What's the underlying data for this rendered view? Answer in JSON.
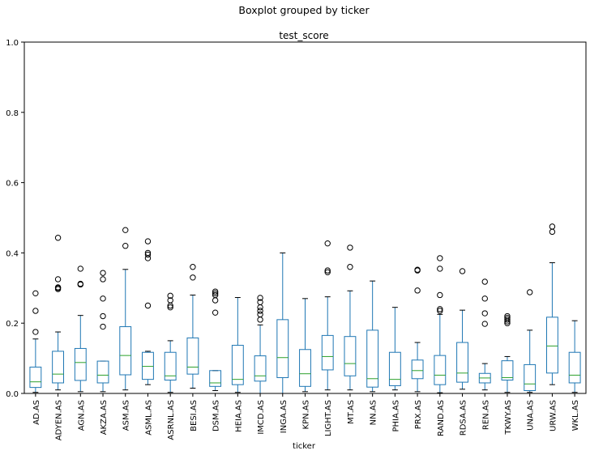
{
  "chart_data": {
    "type": "box",
    "suptitle": "Boxplot grouped by ticker",
    "title": "test_score",
    "xlabel": "ticker",
    "ylabel": "",
    "ylim": [
      0,
      1.0
    ],
    "yticks": [
      "0.0",
      "0.2",
      "0.4",
      "0.6",
      "0.8",
      "1.0"
    ],
    "colors": {
      "box": "#1f77b4",
      "median": "#2ca02c",
      "whisker": "#1f77b4",
      "flier": "#000000"
    },
    "categories": [
      "AD.AS",
      "ADYEN.AS",
      "AGN.AS",
      "AKZA.AS",
      "ASM.AS",
      "ASML.AS",
      "ASRNL.AS",
      "BESI.AS",
      "DSM.AS",
      "HEIA.AS",
      "IMCD.AS",
      "INGA.AS",
      "KPN.AS",
      "LIGHT.AS",
      "MT.AS",
      "NN.AS",
      "PHIA.AS",
      "PRX.AS",
      "RAND.AS",
      "RDSA.AS",
      "REN.AS",
      "TKWY.AS",
      "UNA.AS",
      "URW.AS",
      "WKL.AS"
    ],
    "boxes": [
      {
        "whislo": 0.003,
        "q1": 0.017,
        "med": 0.033,
        "q3": 0.075,
        "whishi": 0.155,
        "fliers": [
          0.175,
          0.235,
          0.285
        ]
      },
      {
        "whislo": 0.01,
        "q1": 0.03,
        "med": 0.055,
        "q3": 0.12,
        "whishi": 0.175,
        "fliers": [
          0.297,
          0.3,
          0.302,
          0.325,
          0.443
        ]
      },
      {
        "whislo": 0.005,
        "q1": 0.037,
        "med": 0.088,
        "q3": 0.128,
        "whishi": 0.222,
        "fliers": [
          0.31,
          0.312,
          0.355
        ]
      },
      {
        "whislo": 0.005,
        "q1": 0.03,
        "med": 0.052,
        "q3": 0.092,
        "whishi": 0.092,
        "fliers": [
          0.19,
          0.22,
          0.27,
          0.325,
          0.343
        ]
      },
      {
        "whislo": 0.01,
        "q1": 0.053,
        "med": 0.108,
        "q3": 0.19,
        "whishi": 0.353,
        "fliers": [
          0.42,
          0.465
        ]
      },
      {
        "whislo": 0.025,
        "q1": 0.04,
        "med": 0.077,
        "q3": 0.117,
        "whishi": 0.12,
        "fliers": [
          0.25,
          0.385,
          0.395,
          0.4,
          0.433
        ]
      },
      {
        "whislo": 0.003,
        "q1": 0.038,
        "med": 0.05,
        "q3": 0.117,
        "whishi": 0.15,
        "fliers": [
          0.245,
          0.25,
          0.265,
          0.278
        ]
      },
      {
        "whislo": 0.015,
        "q1": 0.055,
        "med": 0.075,
        "q3": 0.158,
        "whishi": 0.28,
        "fliers": [
          0.33,
          0.36
        ]
      },
      {
        "whislo": 0.008,
        "q1": 0.02,
        "med": 0.03,
        "q3": 0.065,
        "whishi": 0.065,
        "fliers": [
          0.23,
          0.265,
          0.28,
          0.285,
          0.29
        ]
      },
      {
        "whislo": 0.003,
        "q1": 0.025,
        "med": 0.04,
        "q3": 0.137,
        "whishi": 0.273,
        "fliers": []
      },
      {
        "whislo": 0.0,
        "q1": 0.035,
        "med": 0.05,
        "q3": 0.107,
        "whishi": 0.195,
        "fliers": [
          0.21,
          0.225,
          0.235,
          0.245,
          0.26,
          0.272
        ]
      },
      {
        "whislo": 0.0,
        "q1": 0.045,
        "med": 0.102,
        "q3": 0.21,
        "whishi": 0.4,
        "fliers": []
      },
      {
        "whislo": 0.005,
        "q1": 0.02,
        "med": 0.056,
        "q3": 0.125,
        "whishi": 0.27,
        "fliers": []
      },
      {
        "whislo": 0.01,
        "q1": 0.067,
        "med": 0.105,
        "q3": 0.165,
        "whishi": 0.275,
        "fliers": [
          0.345,
          0.35,
          0.427
        ]
      },
      {
        "whislo": 0.01,
        "q1": 0.05,
        "med": 0.085,
        "q3": 0.162,
        "whishi": 0.292,
        "fliers": [
          0.36,
          0.415
        ]
      },
      {
        "whislo": 0.005,
        "q1": 0.018,
        "med": 0.042,
        "q3": 0.18,
        "whishi": 0.32,
        "fliers": []
      },
      {
        "whislo": 0.01,
        "q1": 0.022,
        "med": 0.04,
        "q3": 0.117,
        "whishi": 0.245,
        "fliers": []
      },
      {
        "whislo": 0.005,
        "q1": 0.042,
        "med": 0.065,
        "q3": 0.095,
        "whishi": 0.145,
        "fliers": [
          0.293,
          0.35,
          0.352
        ]
      },
      {
        "whislo": 0.002,
        "q1": 0.025,
        "med": 0.052,
        "q3": 0.108,
        "whishi": 0.225,
        "fliers": [
          0.235,
          0.24,
          0.28,
          0.355,
          0.385
        ]
      },
      {
        "whislo": 0.012,
        "q1": 0.032,
        "med": 0.058,
        "q3": 0.145,
        "whishi": 0.237,
        "fliers": [
          0.348
        ]
      },
      {
        "whislo": 0.01,
        "q1": 0.03,
        "med": 0.044,
        "q3": 0.057,
        "whishi": 0.085,
        "fliers": [
          0.198,
          0.228,
          0.27,
          0.318
        ]
      },
      {
        "whislo": 0.003,
        "q1": 0.038,
        "med": 0.045,
        "q3": 0.093,
        "whishi": 0.105,
        "fliers": [
          0.2,
          0.205,
          0.21,
          0.215,
          0.22
        ]
      },
      {
        "whislo": 0.003,
        "q1": 0.008,
        "med": 0.027,
        "q3": 0.082,
        "whishi": 0.18,
        "fliers": [
          0.288
        ]
      },
      {
        "whislo": 0.025,
        "q1": 0.058,
        "med": 0.135,
        "q3": 0.217,
        "whishi": 0.372,
        "fliers": [
          0.46,
          0.475
        ]
      },
      {
        "whislo": 0.003,
        "q1": 0.03,
        "med": 0.052,
        "q3": 0.117,
        "whishi": 0.207,
        "fliers": []
      }
    ]
  }
}
